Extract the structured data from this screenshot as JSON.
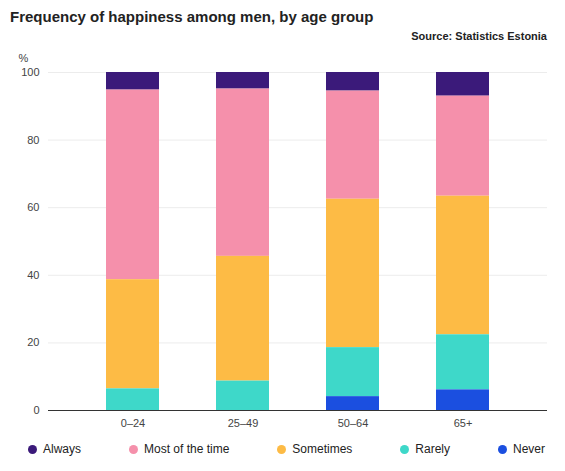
{
  "chart_data": {
    "type": "bar",
    "title": "Frequency of happiness among men, by age group",
    "source": "Source: Statistics Estonia",
    "y_label": "%",
    "categories": [
      "0–24",
      "25–49",
      "50–64",
      "65+"
    ],
    "series": [
      {
        "name": "Always",
        "color": "#3b1a7a",
        "values": [
          5.2,
          4.9,
          5.5,
          7.0
        ]
      },
      {
        "name": "Most of the time",
        "color": "#f590ab",
        "values": [
          56.1,
          49.5,
          32.0,
          29.6
        ]
      },
      {
        "name": "Sometimes",
        "color": "#fdbb45",
        "values": [
          32.3,
          36.9,
          43.9,
          41.0
        ]
      },
      {
        "name": "Rarely",
        "color": "#3ed8c9",
        "values": [
          6.4,
          8.7,
          14.5,
          16.3
        ]
      },
      {
        "name": "Never",
        "color": "#1b4fe0",
        "values": [
          0,
          0,
          4.1,
          6.1
        ]
      }
    ],
    "stacked": true,
    "ylim": [
      0,
      100
    ],
    "yticks": [
      0,
      20,
      40,
      60,
      80,
      100
    ],
    "grid": true,
    "legend": "bottom"
  }
}
